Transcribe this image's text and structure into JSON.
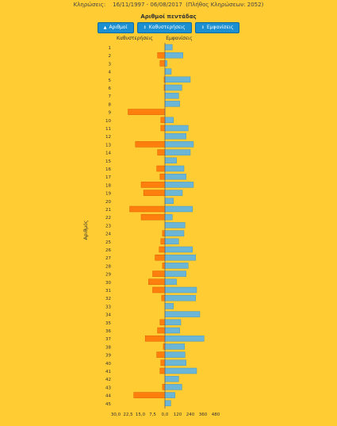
{
  "header": {
    "label": "Κληρώσεις:",
    "period": "16/11/1997 - 06/08/2017",
    "count": "(Πλήθος Κληρώσεων: 2052)"
  },
  "sort_buttons": [
    {
      "label": "Αριθμοί",
      "icon": "chevron-up-icon",
      "glyph": "▲"
    },
    {
      "label": "Καθυστερήσεις",
      "icon": "sort-icon",
      "glyph": "⇕"
    },
    {
      "label": "Εμφανίσεις",
      "icon": "sort-icon",
      "glyph": "⇕"
    }
  ],
  "chart_data": {
    "type": "bar",
    "title": "Αριθμοί πεντάδας",
    "left_series_label": "Καθυστερήσεις",
    "right_series_label": "Εμφανίσεις",
    "ylabel": "Αριθμός",
    "categories": [
      "1",
      "2",
      "3",
      "4",
      "5",
      "6",
      "7",
      "8",
      "9",
      "10",
      "11",
      "12",
      "13",
      "14",
      "15",
      "16",
      "17",
      "18",
      "19",
      "20",
      "21",
      "22",
      "23",
      "24",
      "25",
      "26",
      "27",
      "28",
      "29",
      "30",
      "31",
      "32",
      "33",
      "34",
      "35",
      "36",
      "37",
      "38",
      "39",
      "40",
      "41",
      "42",
      "43",
      "44",
      "45"
    ],
    "delays": [
      0,
      4.5,
      3,
      0,
      0.5,
      0.5,
      0,
      0,
      22.5,
      2.5,
      2.5,
      0,
      18,
      4.5,
      0,
      5,
      3,
      14.5,
      13,
      0,
      21.5,
      14.5,
      0,
      1.5,
      2.5,
      3.5,
      6,
      1.5,
      7.5,
      10,
      7.5,
      2,
      0,
      0,
      3,
      4.5,
      12,
      1,
      5,
      2.5,
      3,
      0,
      1.5,
      19,
      0
    ],
    "appearances": [
      70,
      170,
      20,
      60,
      240,
      160,
      130,
      140,
      0,
      80,
      220,
      200,
      270,
      240,
      110,
      180,
      200,
      270,
      165,
      80,
      260,
      70,
      190,
      180,
      130,
      260,
      290,
      220,
      200,
      110,
      300,
      290,
      80,
      330,
      150,
      140,
      370,
      185,
      190,
      200,
      300,
      130,
      160,
      95,
      55
    ],
    "left_ticks": [
      "30,0",
      "22,5",
      "15,0",
      "7,5",
      "0,0"
    ],
    "right_ticks": [
      "120",
      "240",
      "360",
      "480"
    ],
    "left_max": 30,
    "right_max": 480,
    "colors": {
      "delay": "#FF7F0E",
      "delay_stroke": "#D95A00",
      "appearance": "#6BB6D6",
      "appearance_stroke": "#4A98BD",
      "axis": "#666666"
    }
  }
}
